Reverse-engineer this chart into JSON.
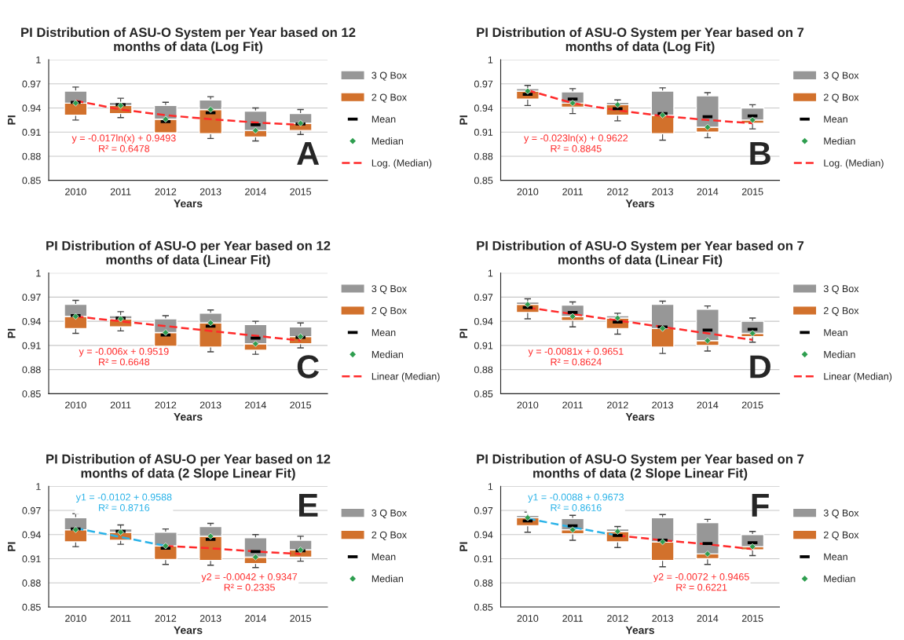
{
  "chart_data": [
    {
      "type": "bar",
      "title": "PI Distribution of ASU-O System per Year based on 12\nmonths of data (Log Fit)",
      "xlabel": "Years",
      "ylabel": "PI",
      "categories": [
        "2010",
        "2011",
        "2012",
        "2013",
        "2014",
        "2015"
      ],
      "ylim": [
        0.85,
        1
      ],
      "yticks": [
        0.85,
        0.88,
        0.91,
        0.94,
        0.97,
        1
      ],
      "grid": "y",
      "legend": "right",
      "annotations": [
        "A",
        "y = -0.017ln(x) + 0.9493\nR² = 0.6478"
      ],
      "series": [
        {
          "name": "2 Q Box",
          "color": "#d2712c",
          "base": [
            0.931,
            0.933,
            0.909,
            0.908,
            0.904,
            0.912
          ],
          "values": [
            0.015,
            0.01,
            0.017,
            0.03,
            0.008,
            0.009
          ]
        },
        {
          "name": "3 Q Box",
          "color": "#979797",
          "base": [
            0.946,
            0.943,
            0.926,
            0.938,
            0.912,
            0.921
          ],
          "values": [
            0.015,
            0.004,
            0.017,
            0.012,
            0.024,
            0.012
          ],
          "errors": [
            [
              0.925,
              0.966
            ],
            [
              0.928,
              0.952
            ],
            [
              0.903,
              0.947
            ],
            [
              0.902,
              0.954
            ],
            [
              0.899,
              0.94
            ],
            [
              0.907,
              0.938
            ]
          ]
        },
        {
          "name": "Mean",
          "type": "scatter",
          "marker": "square",
          "color": "#000000",
          "values": [
            0.947,
            0.944,
            0.923,
            0.934,
            0.919,
            0.92
          ]
        },
        {
          "name": "Median",
          "type": "scatter",
          "marker": "diamond",
          "color": "#2e9e4f",
          "values": [
            0.946,
            0.943,
            0.926,
            0.938,
            0.912,
            0.921
          ]
        },
        {
          "name": "Log. (Median)",
          "type": "line",
          "line_style": "dashed",
          "color": "#ff2a2a",
          "values": [
            0.949,
            0.938,
            0.931,
            0.926,
            0.922,
            0.919
          ]
        }
      ]
    },
    {
      "type": "bar",
      "title": "PI Distribution of ASU-O System per Year based on 7\nmonths of data (Log Fit)",
      "xlabel": "Years",
      "ylabel": "PI",
      "categories": [
        "2010",
        "2011",
        "2012",
        "2013",
        "2014",
        "2015"
      ],
      "ylim": [
        0.85,
        1
      ],
      "yticks": [
        0.85,
        0.88,
        0.91,
        0.94,
        0.97,
        1
      ],
      "grid": "y",
      "legend": "right",
      "annotations": [
        "B",
        "y = -0.023ln(x) + 0.9622\nR² = 0.8845"
      ],
      "series": [
        {
          "name": "2 Q Box",
          "color": "#d2712c",
          "base": [
            0.951,
            0.941,
            0.931,
            0.908,
            0.91,
            0.921
          ],
          "values": [
            0.01,
            0.005,
            0.013,
            0.023,
            0.006,
            0.004
          ]
        },
        {
          "name": "3 Q Box",
          "color": "#979797",
          "base": [
            0.961,
            0.946,
            0.944,
            0.931,
            0.916,
            0.925
          ],
          "values": [
            0.003,
            0.014,
            0.003,
            0.03,
            0.039,
            0.015
          ],
          "errors": [
            [
              0.943,
              0.968
            ],
            [
              0.933,
              0.964
            ],
            [
              0.924,
              0.95
            ],
            [
              0.9,
              0.965
            ],
            [
              0.903,
              0.959
            ],
            [
              0.914,
              0.944
            ]
          ]
        },
        {
          "name": "Mean",
          "type": "scatter",
          "marker": "square",
          "color": "#000000",
          "values": [
            0.957,
            0.951,
            0.939,
            0.933,
            0.929,
            0.93
          ]
        },
        {
          "name": "Median",
          "type": "scatter",
          "marker": "diamond",
          "color": "#2e9e4f",
          "values": [
            0.961,
            0.946,
            0.944,
            0.931,
            0.916,
            0.925
          ]
        },
        {
          "name": "Log. (Median)",
          "type": "line",
          "line_style": "dashed",
          "color": "#ff2a2a",
          "values": [
            0.962,
            0.946,
            0.937,
            0.93,
            0.925,
            0.921
          ]
        }
      ]
    },
    {
      "type": "bar",
      "title": "PI Distribution of ASU-O per Year based on 12\nmonths of data (Linear Fit)",
      "xlabel": "Years",
      "ylabel": "PI",
      "categories": [
        "2010",
        "2011",
        "2012",
        "2013",
        "2014",
        "2015"
      ],
      "ylim": [
        0.85,
        1
      ],
      "yticks": [
        0.85,
        0.88,
        0.91,
        0.94,
        0.97,
        1
      ],
      "grid": "y",
      "legend": "right",
      "annotations": [
        "C",
        "y = -0.006x + 0.9519\nR² = 0.6648"
      ],
      "series": [
        {
          "name": "2 Q Box",
          "color": "#d2712c",
          "base": [
            0.931,
            0.933,
            0.909,
            0.908,
            0.904,
            0.912
          ],
          "values": [
            0.015,
            0.01,
            0.017,
            0.03,
            0.008,
            0.009
          ]
        },
        {
          "name": "3 Q Box",
          "color": "#979797",
          "base": [
            0.946,
            0.943,
            0.926,
            0.938,
            0.912,
            0.921
          ],
          "values": [
            0.015,
            0.004,
            0.017,
            0.012,
            0.024,
            0.012
          ],
          "errors": [
            [
              0.925,
              0.966
            ],
            [
              0.928,
              0.952
            ],
            [
              0.903,
              0.947
            ],
            [
              0.902,
              0.954
            ],
            [
              0.899,
              0.94
            ],
            [
              0.907,
              0.938
            ]
          ]
        },
        {
          "name": "Mean",
          "type": "scatter",
          "marker": "square",
          "color": "#000000",
          "values": [
            0.947,
            0.944,
            0.923,
            0.934,
            0.919,
            0.92
          ]
        },
        {
          "name": "Median",
          "type": "scatter",
          "marker": "diamond",
          "color": "#2e9e4f",
          "values": [
            0.946,
            0.943,
            0.926,
            0.938,
            0.912,
            0.921
          ]
        },
        {
          "name": "Linear (Median)",
          "type": "line",
          "line_style": "dashed",
          "color": "#ff2a2a",
          "values": [
            0.946,
            0.94,
            0.934,
            0.928,
            0.922,
            0.916
          ]
        }
      ]
    },
    {
      "type": "bar",
      "title": "PI Distribution of ASU-O System per Year based on 7\nmonths of data (Linear Fit)",
      "xlabel": "Years",
      "ylabel": "PI",
      "categories": [
        "2010",
        "2011",
        "2012",
        "2013",
        "2014",
        "2015"
      ],
      "ylim": [
        0.85,
        1
      ],
      "yticks": [
        0.85,
        0.88,
        0.91,
        0.94,
        0.97,
        1
      ],
      "grid": "y",
      "legend": "right",
      "annotations": [
        "D",
        "y = -0.0081x + 0.9651\nR² = 0.8624"
      ],
      "series": [
        {
          "name": "2 Q Box",
          "color": "#d2712c",
          "base": [
            0.951,
            0.941,
            0.931,
            0.908,
            0.91,
            0.921
          ],
          "values": [
            0.01,
            0.005,
            0.013,
            0.023,
            0.006,
            0.004
          ]
        },
        {
          "name": "3 Q Box",
          "color": "#979797",
          "base": [
            0.961,
            0.946,
            0.944,
            0.931,
            0.916,
            0.925
          ],
          "values": [
            0.003,
            0.014,
            0.003,
            0.03,
            0.039,
            0.015
          ],
          "errors": [
            [
              0.943,
              0.968
            ],
            [
              0.933,
              0.964
            ],
            [
              0.924,
              0.95
            ],
            [
              0.9,
              0.965
            ],
            [
              0.903,
              0.959
            ],
            [
              0.914,
              0.944
            ]
          ]
        },
        {
          "name": "Mean",
          "type": "scatter",
          "marker": "square",
          "color": "#000000",
          "values": [
            0.957,
            0.951,
            0.939,
            0.933,
            0.929,
            0.93
          ]
        },
        {
          "name": "Median",
          "type": "scatter",
          "marker": "diamond",
          "color": "#2e9e4f",
          "values": [
            0.961,
            0.946,
            0.944,
            0.931,
            0.916,
            0.925
          ]
        },
        {
          "name": "Linear (Median)",
          "type": "line",
          "line_style": "dashed",
          "color": "#ff2a2a",
          "values": [
            0.957,
            0.949,
            0.941,
            0.933,
            0.925,
            0.917
          ]
        }
      ]
    },
    {
      "type": "bar",
      "title": "PI Distribution of ASU-O per Year based on 12\nmonths of data (2 Slope Linear Fit)",
      "xlabel": "Years",
      "ylabel": "PI",
      "categories": [
        "2010",
        "2011",
        "2012",
        "2013",
        "2014",
        "2015"
      ],
      "ylim": [
        0.85,
        1
      ],
      "yticks": [
        0.85,
        0.88,
        0.91,
        0.94,
        0.97,
        1
      ],
      "grid": "y",
      "legend": "right",
      "annotations": [
        "E",
        "y1 = -0.0102 + 0.9588\nR² = 0.8716",
        "y2 = -0.0042 + 0.9347\nR² = 0.2335"
      ],
      "series": [
        {
          "name": "2 Q Box",
          "color": "#d2712c",
          "base": [
            0.931,
            0.933,
            0.909,
            0.908,
            0.904,
            0.912
          ],
          "values": [
            0.015,
            0.01,
            0.017,
            0.03,
            0.008,
            0.009
          ]
        },
        {
          "name": "3 Q Box",
          "color": "#979797",
          "base": [
            0.946,
            0.943,
            0.926,
            0.938,
            0.912,
            0.921
          ],
          "values": [
            0.015,
            0.004,
            0.017,
            0.012,
            0.024,
            0.012
          ],
          "errors": [
            [
              0.925,
              0.966
            ],
            [
              0.928,
              0.952
            ],
            [
              0.903,
              0.947
            ],
            [
              0.902,
              0.954
            ],
            [
              0.899,
              0.94
            ],
            [
              0.907,
              0.938
            ]
          ]
        },
        {
          "name": "Mean",
          "type": "scatter",
          "marker": "square",
          "color": "#000000",
          "values": [
            0.947,
            0.944,
            0.923,
            0.934,
            0.919,
            0.92
          ]
        },
        {
          "name": "Median",
          "type": "scatter",
          "marker": "diamond",
          "color": "#2e9e4f",
          "values": [
            0.946,
            0.943,
            0.926,
            0.938,
            0.912,
            0.921
          ]
        },
        {
          "type": "line",
          "line_style": "dashed",
          "color": "#29b2e8",
          "values": [
            0.948,
            0.937,
            0.926,
            null,
            null,
            null
          ]
        },
        {
          "type": "line",
          "line_style": "dashed",
          "color": "#ff2a2a",
          "values": [
            null,
            null,
            0.926,
            0.923,
            0.919,
            0.916
          ]
        }
      ]
    },
    {
      "type": "bar",
      "title": "PI Distribution of ASU-O System per Year based on 7\nmonths of data (2 Slope Linear Fit)",
      "xlabel": "Years",
      "ylabel": "PI",
      "categories": [
        "2010",
        "2011",
        "2012",
        "2013",
        "2014",
        "2015"
      ],
      "ylim": [
        0.85,
        1
      ],
      "yticks": [
        0.85,
        0.88,
        0.91,
        0.94,
        0.97,
        1
      ],
      "grid": "y",
      "legend": "right",
      "annotations": [
        "F",
        "y1 = -0.0088 + 0.9673\nR² = 0.8616",
        "y2 = -0.0072 + 0.9465\nR² = 0.6221"
      ],
      "series": [
        {
          "name": "2 Q Box",
          "color": "#d2712c",
          "base": [
            0.951,
            0.941,
            0.931,
            0.908,
            0.91,
            0.921
          ],
          "values": [
            0.01,
            0.005,
            0.013,
            0.023,
            0.006,
            0.004
          ]
        },
        {
          "name": "3 Q Box",
          "color": "#979797",
          "base": [
            0.961,
            0.946,
            0.944,
            0.931,
            0.916,
            0.925
          ],
          "values": [
            0.003,
            0.014,
            0.003,
            0.03,
            0.039,
            0.015
          ],
          "errors": [
            [
              0.943,
              0.968
            ],
            [
              0.933,
              0.964
            ],
            [
              0.924,
              0.95
            ],
            [
              0.9,
              0.965
            ],
            [
              0.903,
              0.959
            ],
            [
              0.914,
              0.944
            ]
          ]
        },
        {
          "name": "Mean",
          "type": "scatter",
          "marker": "square",
          "color": "#000000",
          "values": [
            0.957,
            0.951,
            0.939,
            0.933,
            0.929,
            0.93
          ]
        },
        {
          "name": "Median",
          "type": "scatter",
          "marker": "diamond",
          "color": "#2e9e4f",
          "values": [
            0.961,
            0.946,
            0.944,
            0.931,
            0.916,
            0.925
          ]
        },
        {
          "type": "line",
          "line_style": "dashed",
          "color": "#29b2e8",
          "values": [
            0.96,
            0.949,
            0.939,
            null,
            null,
            null
          ]
        },
        {
          "type": "line",
          "line_style": "dashed",
          "color": "#ff2a2a",
          "values": [
            null,
            null,
            0.939,
            0.933,
            0.928,
            0.922
          ]
        }
      ]
    }
  ]
}
